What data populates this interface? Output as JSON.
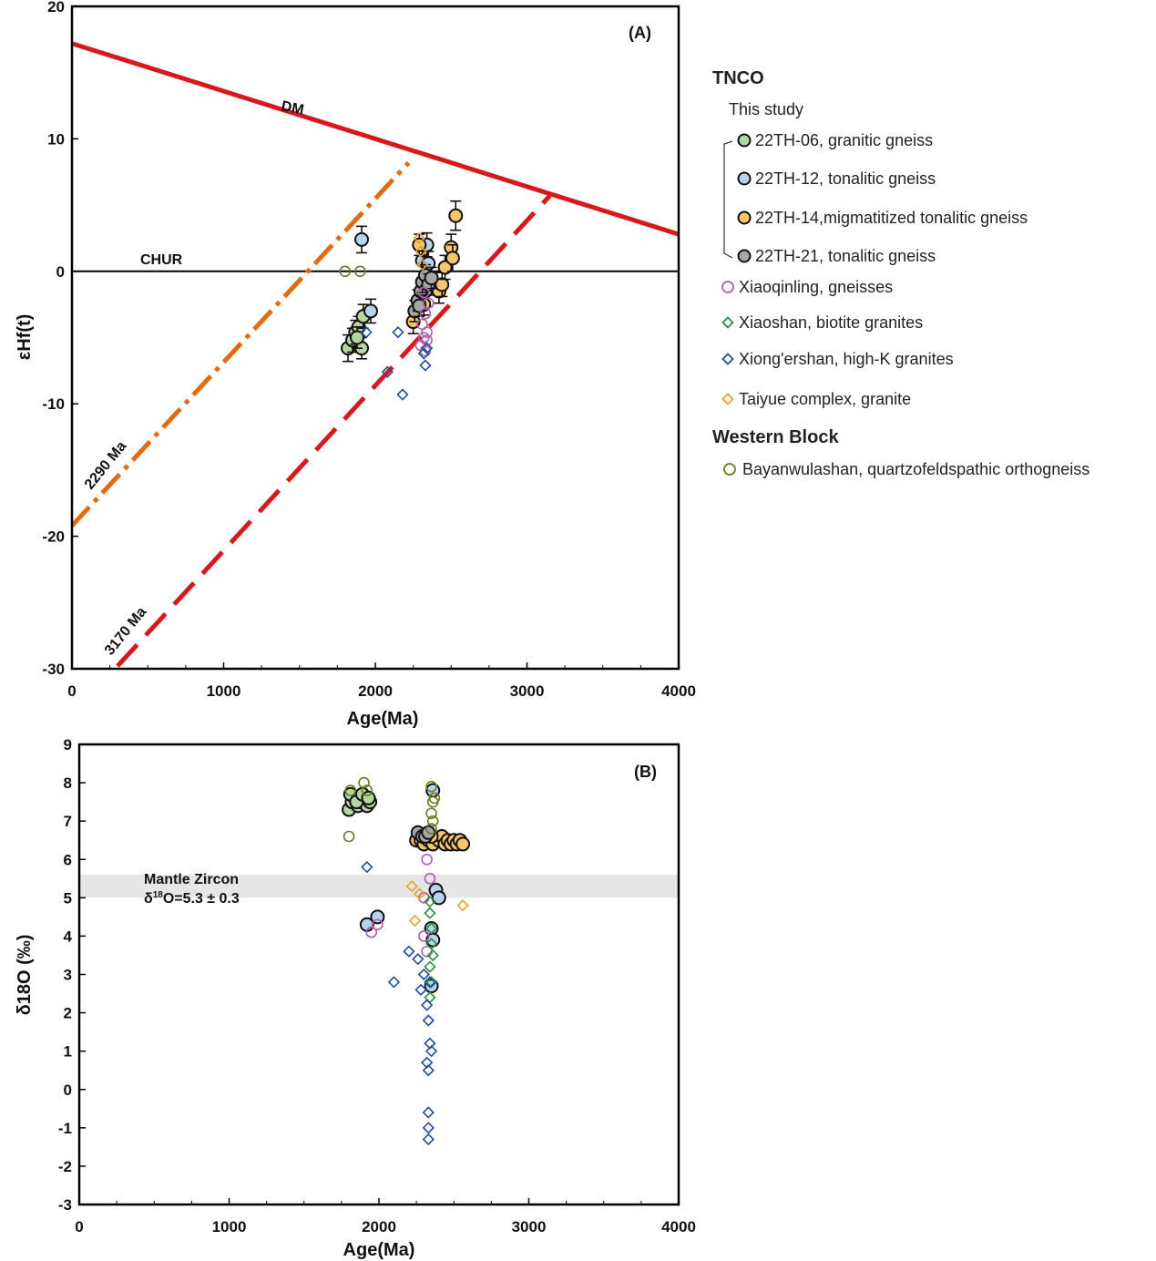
{
  "chart_data": [
    {
      "type": "scatter",
      "panel_label": "(A)",
      "xlabel": "Age(Ma)",
      "ylabel": "εHf(t)",
      "xlim": [
        0,
        4000
      ],
      "ylim": [
        -30,
        20
      ],
      "xticks": [
        "0",
        "1000",
        "2000",
        "3000",
        "4000"
      ],
      "yticks": [
        "20",
        "10",
        "0",
        "-10",
        "-20",
        "-30"
      ],
      "reference_lines": [
        {
          "name": "DM",
          "x": [
            0,
            4000
          ],
          "y": [
            17.2,
            2.8
          ],
          "color": "#d7191c",
          "style": "solid"
        },
        {
          "name": "CHUR",
          "x": [
            0,
            4000
          ],
          "y": [
            0,
            0
          ],
          "color": "#000000",
          "style": "solid"
        },
        {
          "name": "2290 Ma",
          "x": [
            0,
            2220
          ],
          "y": [
            -19.2,
            8.2
          ],
          "color": "#e06c10",
          "style": "dashdot"
        },
        {
          "name": "3170 Ma",
          "x": [
            300,
            3150
          ],
          "y": [
            -29.8,
            5.7
          ],
          "color": "#d7191c",
          "style": "dashed"
        }
      ],
      "series": [
        {
          "name": "22TH-06, granitic gneiss",
          "marker": "circle",
          "fill": "#b5d6a0",
          "points": [
            [
              1820,
              -5.8,
              1.0
            ],
            [
              1850,
              -5.2,
              0.9
            ],
            [
              1870,
              -4.6,
              0.9
            ],
            [
              1890,
              -4.2,
              0.8
            ],
            [
              1910,
              -5.8,
              0.8
            ],
            [
              1920,
              -3.4,
              0.9
            ],
            [
              1880,
              -5.0,
              0.8
            ]
          ]
        },
        {
          "name": "22TH-12, tonalitic gneiss",
          "marker": "circle",
          "fill": "#b8d4ec",
          "points": [
            [
              1910,
              2.4,
              1.0
            ],
            [
              1970,
              -3.0,
              0.9
            ],
            [
              2310,
              0.8,
              0.8
            ],
            [
              2340,
              2.0,
              0.9
            ],
            [
              2350,
              0.6,
              0.9
            ],
            [
              2330,
              -1.5,
              0.8
            ]
          ]
        },
        {
          "name": "22TH-14,migmatitized tonalitic gneiss",
          "marker": "circle",
          "fill": "#f8c56a",
          "points": [
            [
              2250,
              -3.8,
              0.9
            ],
            [
              2290,
              2.0,
              0.8
            ],
            [
              2320,
              -2.5,
              0.8
            ],
            [
              2420,
              -1.5,
              0.9
            ],
            [
              2440,
              -1.0,
              0.9
            ],
            [
              2460,
              0.3,
              0.9
            ],
            [
              2500,
              1.8,
              1.0
            ],
            [
              2510,
              1.0,
              1.0
            ],
            [
              2530,
              4.2,
              1.1
            ]
          ]
        },
        {
          "name": "22TH-21, tonalitic gneiss",
          "marker": "circle",
          "fill": "#a6a6a6",
          "points": [
            [
              2260,
              -3.0,
              0.8
            ],
            [
              2280,
              -2.2,
              0.8
            ],
            [
              2300,
              -1.5,
              0.8
            ],
            [
              2310,
              -0.8,
              0.8
            ],
            [
              2330,
              -0.3,
              0.8
            ],
            [
              2350,
              -1.0,
              0.8
            ],
            [
              2370,
              -0.5,
              0.8
            ],
            [
              2290,
              -2.6,
              0.8
            ]
          ]
        },
        {
          "name": "Xiaoqinling, gneisses",
          "marker": "circle-open",
          "color": "#b05cb0",
          "points": [
            [
              2310,
              -4.0
            ],
            [
              2320,
              -5.0
            ],
            [
              2330,
              -3.2
            ],
            [
              2340,
              -4.6
            ],
            [
              2300,
              -5.6
            ],
            [
              2350,
              -2.4
            ],
            [
              2320,
              -1.6
            ],
            [
              2330,
              -6.0
            ],
            [
              2340,
              -5.2
            ]
          ]
        },
        {
          "name": "Xiaoshan, biotite granites",
          "marker": "diamond-open",
          "color": "#2e8b3e",
          "points": []
        },
        {
          "name": "Xiong'ershan, high-K granites",
          "marker": "diamond-open",
          "color": "#1f4e9a",
          "points": [
            [
              1940,
              -4.6
            ],
            [
              2080,
              -7.6
            ],
            [
              2150,
              -4.6
            ],
            [
              2180,
              -9.3
            ],
            [
              2320,
              -6.2
            ],
            [
              2330,
              -7.1
            ],
            [
              2340,
              -5.8
            ]
          ]
        },
        {
          "name": "Taiyue complex, granite",
          "marker": "diamond-open",
          "color": "#e6a02e",
          "points": [
            [
              2290,
              2.5
            ],
            [
              2300,
              1.5
            ],
            [
              2310,
              0.5
            ]
          ]
        },
        {
          "name": "Bayanwulashan, quartzofeldspathic orthogneiss",
          "marker": "circle-open",
          "color": "#6b7a24",
          "points": [
            [
              1800,
              0
            ],
            [
              1900,
              0
            ]
          ]
        }
      ],
      "annotations": {
        "dm": "DM",
        "chur": "CHUR",
        "ma2290": "2290 Ma",
        "ma3170": "3170 Ma"
      }
    },
    {
      "type": "scatter",
      "panel_label": "(B)",
      "xlabel": "Age(Ma)",
      "ylabel": "δ18O (‰)",
      "xlim": [
        0,
        4000
      ],
      "ylim": [
        -3,
        9
      ],
      "xticks": [
        "0",
        "1000",
        "2000",
        "3000",
        "4000"
      ],
      "yticks": [
        "9",
        "8",
        "7",
        "6",
        "5",
        "4",
        "3",
        "2",
        "1",
        "0",
        "-1",
        "-2",
        "-3"
      ],
      "band": {
        "label_line1": "Mantle Zircon",
        "label_line2_prefix": "δ",
        "label_line2_sup": "18",
        "label_line2_rest": "O=5.3 ± 0.3",
        "y": [
          5.0,
          5.6
        ],
        "color": "#e6e6e6"
      },
      "series": [
        {
          "name": "22TH-06, granitic gneiss",
          "marker": "circle",
          "fill": "#b5d6a0",
          "points": [
            [
              1800,
              7.3
            ],
            [
              1820,
              7.5
            ],
            [
              1840,
              7.6
            ],
            [
              1860,
              7.4
            ],
            [
              1880,
              7.5
            ],
            [
              1900,
              7.6
            ],
            [
              1920,
              7.4
            ],
            [
              1940,
              7.5
            ],
            [
              1810,
              7.7
            ],
            [
              1850,
              7.5
            ],
            [
              1890,
              7.7
            ],
            [
              1930,
              7.6
            ]
          ]
        },
        {
          "name": "22TH-12, tonalitic gneiss",
          "marker": "circle",
          "fill": "#b8d4ec",
          "points": [
            [
              1920,
              4.3
            ],
            [
              1990,
              4.5
            ],
            [
              2360,
              7.8
            ],
            [
              2380,
              5.2
            ],
            [
              2400,
              5.0
            ],
            [
              2350,
              4.2
            ],
            [
              2360,
              3.9
            ],
            [
              2350,
              2.7
            ]
          ]
        },
        {
          "name": "22TH-14,migmatitized tonalitic gneiss",
          "marker": "circle",
          "fill": "#f8c56a",
          "points": [
            [
              2250,
              6.5
            ],
            [
              2280,
              6.5
            ],
            [
              2300,
              6.4
            ],
            [
              2330,
              6.5
            ],
            [
              2360,
              6.4
            ],
            [
              2400,
              6.5
            ],
            [
              2420,
              6.6
            ],
            [
              2440,
              6.4
            ],
            [
              2460,
              6.5
            ],
            [
              2480,
              6.4
            ],
            [
              2500,
              6.5
            ],
            [
              2520,
              6.4
            ],
            [
              2540,
              6.5
            ],
            [
              2560,
              6.4
            ],
            [
              2350,
              6.6
            ]
          ]
        },
        {
          "name": "22TH-21, tonalitic gneiss",
          "marker": "circle",
          "fill": "#a6a6a6",
          "points": [
            [
              2260,
              6.7
            ],
            [
              2290,
              6.6
            ],
            [
              2310,
              6.6
            ],
            [
              2330,
              6.7
            ]
          ]
        },
        {
          "name": "Xiaoqinling, gneisses",
          "marker": "circle-open",
          "color": "#b05cb0",
          "points": [
            [
              1950,
              4.1
            ],
            [
              1990,
              4.3
            ],
            [
              2300,
              5.0
            ],
            [
              2320,
              6.0
            ],
            [
              2340,
              5.5
            ],
            [
              2300,
              4.0
            ],
            [
              2320,
              3.6
            ]
          ]
        },
        {
          "name": "Xiaoshan, biotite granites",
          "marker": "diamond-open",
          "color": "#2e8b3e",
          "points": [
            [
              2340,
              4.9
            ],
            [
              2340,
              4.6
            ],
            [
              2350,
              4.2
            ],
            [
              2350,
              3.8
            ],
            [
              2360,
              3.5
            ],
            [
              2340,
              3.2
            ],
            [
              2350,
              2.8
            ],
            [
              2340,
              2.4
            ]
          ]
        },
        {
          "name": "Xiong'ershan, high-K granites",
          "marker": "diamond-open",
          "color": "#1f4e9a",
          "points": [
            [
              1920,
              5.8
            ],
            [
              2100,
              2.8
            ],
            [
              2200,
              3.6
            ],
            [
              2260,
              3.4
            ],
            [
              2280,
              2.6
            ],
            [
              2300,
              3.0
            ],
            [
              2320,
              2.2
            ],
            [
              2330,
              1.8
            ],
            [
              2340,
              1.2
            ],
            [
              2320,
              0.7
            ],
            [
              2330,
              0.5
            ],
            [
              2330,
              -0.6
            ],
            [
              2330,
              -1.0
            ],
            [
              2330,
              -1.3
            ],
            [
              2350,
              1.0
            ],
            [
              2340,
              2.8
            ]
          ]
        },
        {
          "name": "Taiyue complex, granite",
          "marker": "diamond-open",
          "color": "#e6a02e",
          "points": [
            [
              2220,
              5.3
            ],
            [
              2240,
              4.4
            ],
            [
              2270,
              5.1
            ],
            [
              2560,
              4.8
            ]
          ]
        },
        {
          "name": "Bayanwulashan, quartzofeldspathic orthogneiss",
          "marker": "circle-open",
          "color": "#6b7a24",
          "points": [
            [
              1800,
              6.6
            ],
            [
              1810,
              7.8
            ],
            [
              1900,
              8.0
            ],
            [
              1920,
              7.8
            ],
            [
              2350,
              7.9
            ],
            [
              2360,
              7.5
            ],
            [
              2350,
              7.2
            ],
            [
              2360,
              7.0
            ],
            [
              2350,
              6.8
            ],
            [
              2370,
              7.6
            ]
          ]
        }
      ]
    }
  ],
  "legend": {
    "heading_tnco": "TNCO",
    "subheading": "This study",
    "items": [
      {
        "label": "22TH-06, granitic gneiss",
        "marker": "circle",
        "color": "#b5d6a0"
      },
      {
        "label": "22TH-12, tonalitic gneiss",
        "marker": "circle",
        "color": "#b8d4ec"
      },
      {
        "label": "22TH-14,migmatitized tonalitic gneiss",
        "marker": "circle",
        "color": "#f8c56a"
      },
      {
        "label": "22TH-21, tonalitic gneiss",
        "marker": "circle",
        "color": "#a6a6a6"
      },
      {
        "label": "Xiaoqinling, gneisses",
        "marker": "circle-open",
        "color": "#b05cb0"
      },
      {
        "label": "Xiaoshan, biotite granites",
        "marker": "diamond-open",
        "color": "#2e8b3e"
      },
      {
        "label": "Xiong'ershan, high-K granites",
        "marker": "diamond-open",
        "color": "#1f4e9a"
      },
      {
        "label": "Taiyue complex, granite",
        "marker": "diamond-open",
        "color": "#e6a02e"
      }
    ],
    "heading_western": "Western Block",
    "western_items": [
      {
        "label": "Bayanwulashan, quartzofeldspathic orthogneiss",
        "marker": "circle-open",
        "color": "#6b7a24"
      }
    ]
  }
}
